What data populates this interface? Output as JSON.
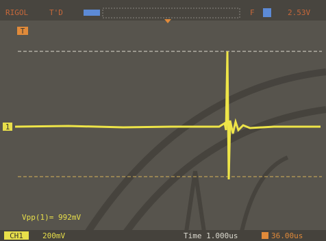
{
  "header": {
    "brand": "RIGOL",
    "status": "T'D",
    "trigger_source": "F",
    "trigger_level": "2.53V"
  },
  "markers": {
    "trigger": "T",
    "channel": "1"
  },
  "measurement": "Vpp(1)= 992mV",
  "footer": {
    "channel": "CH1",
    "scale": "200mV",
    "timebase": "Time 1.000us",
    "offset": "36.00us"
  }
}
